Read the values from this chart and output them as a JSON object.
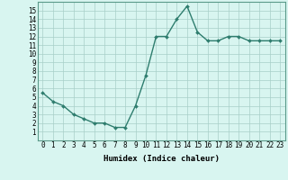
{
  "x": [
    0,
    1,
    2,
    3,
    4,
    5,
    6,
    7,
    8,
    9,
    10,
    11,
    12,
    13,
    14,
    15,
    16,
    17,
    18,
    19,
    20,
    21,
    22,
    23
  ],
  "y": [
    5.5,
    4.5,
    4.0,
    3.0,
    2.5,
    2.0,
    2.0,
    1.5,
    1.5,
    4.0,
    7.5,
    12.0,
    12.0,
    14.0,
    15.5,
    12.5,
    11.5,
    11.5,
    12.0,
    12.0,
    11.5,
    11.5,
    11.5,
    11.5
  ],
  "line_color": "#2e7d6e",
  "marker": "D",
  "marker_size": 2.0,
  "line_width": 1.0,
  "xlabel": "Humidex (Indice chaleur)",
  "xlabel_fontsize": 6.5,
  "xlim": [
    -0.5,
    23.5
  ],
  "ylim": [
    0,
    16
  ],
  "yticks": [
    1,
    2,
    3,
    4,
    5,
    6,
    7,
    8,
    9,
    10,
    11,
    12,
    13,
    14,
    15
  ],
  "xticks": [
    0,
    1,
    2,
    3,
    4,
    5,
    6,
    7,
    8,
    9,
    10,
    11,
    12,
    13,
    14,
    15,
    16,
    17,
    18,
    19,
    20,
    21,
    22,
    23
  ],
  "background_color": "#d8f5f0",
  "grid_color": "#a8cfc8",
  "tick_fontsize": 5.5
}
